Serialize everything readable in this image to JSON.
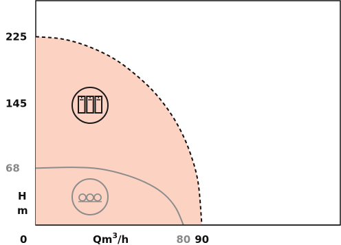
{
  "chart_data": {
    "type": "area",
    "xlabel": {
      "prefix": "Qm",
      "superscript": "3",
      "suffix": "/h"
    },
    "ylabel": {
      "line1": "H",
      "line2": "m"
    },
    "origin_label": "0",
    "x_ticks": [
      {
        "value": 80,
        "label": "80",
        "color": "#888888"
      },
      {
        "value": 90,
        "label": "90",
        "color": "#111111"
      }
    ],
    "y_ticks": [
      {
        "value": 68,
        "label": "68",
        "color": "#888888"
      },
      {
        "value": 145,
        "label": "145",
        "color": "#111111"
      },
      {
        "value": 225,
        "label": "225",
        "color": "#111111"
      }
    ],
    "xlim": [
      0,
      165
    ],
    "ylim": [
      0,
      268
    ],
    "series": [
      {
        "key": "multistage",
        "icon": "multistage-pump-icon",
        "max_flow": 90,
        "max_head": 225,
        "fill": "#fcd2c2",
        "stroke": "#111111",
        "dashed": true,
        "points": [
          [
            0,
            225
          ],
          [
            15,
            222
          ],
          [
            30,
            212
          ],
          [
            45,
            195
          ],
          [
            60,
            168
          ],
          [
            70,
            143
          ],
          [
            78,
            115
          ],
          [
            84,
            84
          ],
          [
            88,
            50
          ],
          [
            90,
            0
          ]
        ]
      },
      {
        "key": "single-impeller",
        "icon": "impeller-pump-icon",
        "max_flow": 80,
        "max_head": 68,
        "fill": "none",
        "stroke": "#8c8c8c",
        "dashed": false,
        "points": [
          [
            0,
            68
          ],
          [
            20,
            69
          ],
          [
            35,
            67
          ],
          [
            50,
            59
          ],
          [
            62,
            48
          ],
          [
            70,
            36
          ],
          [
            76,
            20
          ],
          [
            80,
            0
          ]
        ]
      }
    ]
  }
}
